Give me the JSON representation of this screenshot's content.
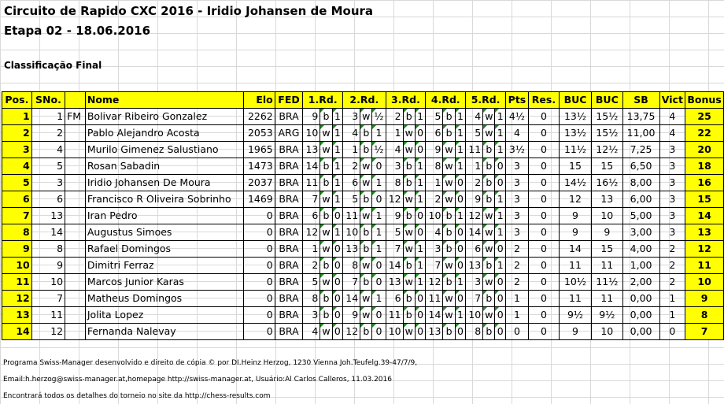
{
  "title_line1": "Circuito de Rapido CXC 2016 - Iridio Johansen de Moura",
  "title_line2": "Etapa 02 - 18.06.2016",
  "subtitle": "Classificação Final",
  "headers": {
    "pos": "Pos.",
    "sno": "SNo.",
    "name": "Nome",
    "elo": "Elo",
    "fed": "FED",
    "r1": "1.Rd.",
    "r2": "2.Rd.",
    "r3": "3.Rd.",
    "r4": "4.Rd.",
    "r5": "5.Rd.",
    "pts": "Pts",
    "res": "Res.",
    "buc1": "BUC",
    "buc2": "BUC",
    "sb": "SB",
    "vict": "Vict",
    "bonus": "Bonus"
  },
  "rows": [
    {
      "pos": "1",
      "sno": "1",
      "title": "FM",
      "name": "Bolivar Ribeiro Gonzalez",
      "elo": "2262",
      "fed": "BRA",
      "rounds": [
        [
          "9",
          "b",
          "1"
        ],
        [
          "3",
          "w",
          "½"
        ],
        [
          "2",
          "b",
          "1"
        ],
        [
          "5",
          "b",
          "1"
        ],
        [
          "4",
          "w",
          "1"
        ]
      ],
      "pts": "4½",
      "res": "0",
      "buc1": "13½",
      "buc2": "15½",
      "sb": "13,75",
      "vict": "4",
      "bonus": "25"
    },
    {
      "pos": "2",
      "sno": "2",
      "title": "",
      "name": "Pablo Alejandro Acosta",
      "elo": "2053",
      "fed": "ARG",
      "rounds": [
        [
          "10",
          "w",
          "1"
        ],
        [
          "4",
          "b",
          "1"
        ],
        [
          "1",
          "w",
          "0"
        ],
        [
          "6",
          "b",
          "1"
        ],
        [
          "5",
          "w",
          "1"
        ]
      ],
      "pts": "4",
      "res": "0",
      "buc1": "13½",
      "buc2": "15½",
      "sb": "11,00",
      "vict": "4",
      "bonus": "22"
    },
    {
      "pos": "3",
      "sno": "4",
      "title": "",
      "name": "Murilo Gimenez Salustiano",
      "elo": "1965",
      "fed": "BRA",
      "rounds": [
        [
          "13",
          "w",
          "1"
        ],
        [
          "1",
          "b",
          "½"
        ],
        [
          "4",
          "w",
          "0"
        ],
        [
          "9",
          "w",
          "1"
        ],
        [
          "11",
          "b",
          "1"
        ]
      ],
      "pts": "3½",
      "res": "0",
      "buc1": "11½",
      "buc2": "12½",
      "sb": "7,25",
      "vict": "3",
      "bonus": "20"
    },
    {
      "pos": "4",
      "sno": "5",
      "title": "",
      "name": "Rosan Sabadin",
      "elo": "1473",
      "fed": "BRA",
      "rounds": [
        [
          "14",
          "b",
          "1"
        ],
        [
          "2",
          "w",
          "0"
        ],
        [
          "3",
          "b",
          "1"
        ],
        [
          "8",
          "w",
          "1"
        ],
        [
          "1",
          "b",
          "0"
        ]
      ],
      "pts": "3",
      "res": "0",
      "buc1": "15",
      "buc2": "15",
      "sb": "6,50",
      "vict": "3",
      "bonus": "18"
    },
    {
      "pos": "5",
      "sno": "3",
      "title": "",
      "name": "Iridio Johansen De Moura",
      "elo": "2037",
      "fed": "BRA",
      "rounds": [
        [
          "11",
          "b",
          "1"
        ],
        [
          "6",
          "w",
          "1"
        ],
        [
          "8",
          "b",
          "1"
        ],
        [
          "1",
          "w",
          "0"
        ],
        [
          "2",
          "b",
          "0"
        ]
      ],
      "pts": "3",
      "res": "0",
      "buc1": "14½",
      "buc2": "16½",
      "sb": "8,00",
      "vict": "3",
      "bonus": "16"
    },
    {
      "pos": "6",
      "sno": "6",
      "title": "",
      "name": "Francisco R Oliveira Sobrinho",
      "elo": "1469",
      "fed": "BRA",
      "rounds": [
        [
          "7",
          "w",
          "1"
        ],
        [
          "5",
          "b",
          "0"
        ],
        [
          "12",
          "w",
          "1"
        ],
        [
          "2",
          "w",
          "0"
        ],
        [
          "9",
          "b",
          "1"
        ]
      ],
      "pts": "3",
      "res": "0",
      "buc1": "12",
      "buc2": "13",
      "sb": "6,00",
      "vict": "3",
      "bonus": "15"
    },
    {
      "pos": "7",
      "sno": "13",
      "title": "",
      "name": "Iran Pedro",
      "elo": "0",
      "fed": "BRA",
      "rounds": [
        [
          "6",
          "b",
          "0"
        ],
        [
          "11",
          "w",
          "1"
        ],
        [
          "9",
          "b",
          "0"
        ],
        [
          "10",
          "b",
          "1"
        ],
        [
          "12",
          "w",
          "1"
        ]
      ],
      "pts": "3",
      "res": "0",
      "buc1": "9",
      "buc2": "10",
      "sb": "5,00",
      "vict": "3",
      "bonus": "14"
    },
    {
      "pos": "8",
      "sno": "14",
      "title": "",
      "name": "Augustus Simoes",
      "elo": "0",
      "fed": "BRA",
      "rounds": [
        [
          "12",
          "w",
          "1"
        ],
        [
          "10",
          "b",
          "1"
        ],
        [
          "5",
          "w",
          "0"
        ],
        [
          "4",
          "b",
          "0"
        ],
        [
          "14",
          "w",
          "1"
        ]
      ],
      "pts": "3",
      "res": "0",
      "buc1": "9",
      "buc2": "9",
      "sb": "3,00",
      "vict": "3",
      "bonus": "13"
    },
    {
      "pos": "9",
      "sno": "8",
      "title": "",
      "name": "Rafael Domingos",
      "elo": "0",
      "fed": "BRA",
      "rounds": [
        [
          "1",
          "w",
          "0"
        ],
        [
          "13",
          "b",
          "1"
        ],
        [
          "7",
          "w",
          "1"
        ],
        [
          "3",
          "b",
          "0"
        ],
        [
          "6",
          "w",
          "0"
        ]
      ],
      "pts": "2",
      "res": "0",
      "buc1": "14",
      "buc2": "15",
      "sb": "4,00",
      "vict": "2",
      "bonus": "12"
    },
    {
      "pos": "10",
      "sno": "9",
      "title": "",
      "name": "Dimitri Ferraz",
      "elo": "0",
      "fed": "BRA",
      "rounds": [
        [
          "2",
          "b",
          "0"
        ],
        [
          "8",
          "w",
          "0"
        ],
        [
          "14",
          "b",
          "1"
        ],
        [
          "7",
          "w",
          "0"
        ],
        [
          "13",
          "b",
          "1"
        ]
      ],
      "pts": "2",
      "res": "0",
      "buc1": "11",
      "buc2": "11",
      "sb": "1,00",
      "vict": "2",
      "bonus": "11"
    },
    {
      "pos": "11",
      "sno": "10",
      "title": "",
      "name": "Marcos Junior Karas",
      "elo": "0",
      "fed": "BRA",
      "rounds": [
        [
          "5",
          "w",
          "0"
        ],
        [
          "7",
          "b",
          "0"
        ],
        [
          "13",
          "w",
          "1"
        ],
        [
          "12",
          "b",
          "1"
        ],
        [
          "3",
          "w",
          "0"
        ]
      ],
      "pts": "2",
      "res": "0",
      "buc1": "10½",
      "buc2": "11½",
      "sb": "2,00",
      "vict": "2",
      "bonus": "10"
    },
    {
      "pos": "12",
      "sno": "7",
      "title": "",
      "name": "Matheus Domingos",
      "elo": "0",
      "fed": "BRA",
      "rounds": [
        [
          "8",
          "b",
          "0"
        ],
        [
          "14",
          "w",
          "1"
        ],
        [
          "6",
          "b",
          "0"
        ],
        [
          "11",
          "w",
          "0"
        ],
        [
          "7",
          "b",
          "0"
        ]
      ],
      "pts": "1",
      "res": "0",
      "buc1": "11",
      "buc2": "11",
      "sb": "0,00",
      "vict": "1",
      "bonus": "9"
    },
    {
      "pos": "13",
      "sno": "11",
      "title": "",
      "name": "Jolita Lopez",
      "elo": "0",
      "fed": "BRA",
      "rounds": [
        [
          "3",
          "b",
          "0"
        ],
        [
          "9",
          "w",
          "0"
        ],
        [
          "11",
          "b",
          "0"
        ],
        [
          "14",
          "w",
          "1"
        ],
        [
          "10",
          "w",
          "0"
        ]
      ],
      "pts": "1",
      "res": "0",
      "buc1": "9½",
      "buc2": "9½",
      "sb": "0,00",
      "vict": "1",
      "bonus": "8"
    },
    {
      "pos": "14",
      "sno": "12",
      "title": "",
      "name": "Fernanda Nalevay",
      "elo": "0",
      "fed": "BRA",
      "rounds": [
        [
          "4",
          "w",
          "0"
        ],
        [
          "12",
          "b",
          "0"
        ],
        [
          "10",
          "w",
          "0"
        ],
        [
          "13",
          "b",
          "0"
        ],
        [
          "8",
          "b",
          "0"
        ]
      ],
      "pts": "0",
      "res": "0",
      "buc1": "9",
      "buc2": "10",
      "sb": "0,00",
      "vict": "0",
      "bonus": "7"
    }
  ],
  "footer": {
    "line1": "Programa Swiss-Manager desenvolvido e direito de cópia © por DI.Heinz Herzog, 1230 Vienna Joh.Teufelg.39-47/7/9,",
    "line2": "Email:h.herzog@swiss-manager.at,homepage http://swiss-manager.at, Usuário:Al Carlos Calleros, 11.03.2016",
    "line3": "Encontrará todos os detalhes do torneio no site da http://chess-results.com"
  },
  "colors": {
    "header_bg": "#ffff00",
    "corner_marker": "#1e8c1e"
  }
}
